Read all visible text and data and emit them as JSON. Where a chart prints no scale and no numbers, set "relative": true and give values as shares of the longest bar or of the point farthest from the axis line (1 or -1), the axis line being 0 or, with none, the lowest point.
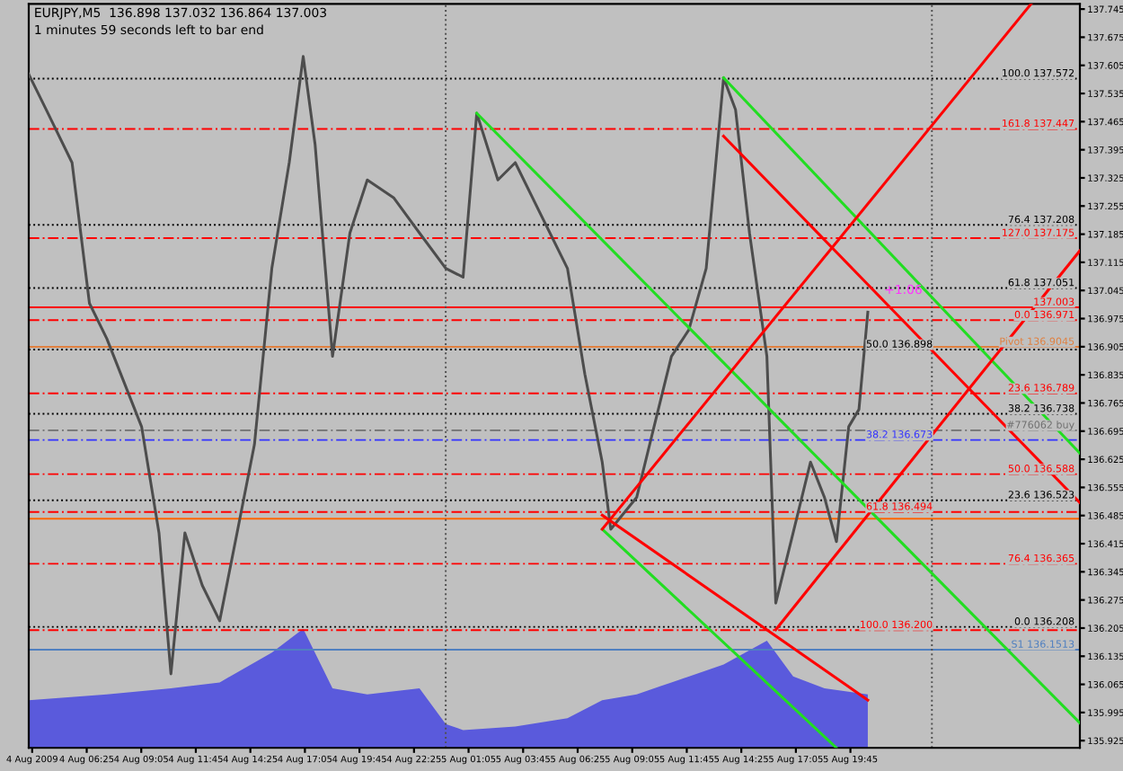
{
  "chart_data": [
    {
      "type": "line",
      "title": "EURJPY,M5  136.898 137.032 136.864 137.003",
      "subtitle": "1 minutes 59 seconds left to bar end",
      "xlim": [
        "2009-08-04T03:35",
        "2009-08-06T06:58"
      ],
      "ylim": [
        135.907,
        137.758
      ],
      "xticks": [
        {
          "value": "2009-08-04T03:45",
          "label": "4 Aug 2009"
        },
        {
          "value": "2009-08-04T06:25",
          "label": "4 Aug 06:25"
        },
        {
          "value": "2009-08-04T09:05",
          "label": "4 Aug 09:05"
        },
        {
          "value": "2009-08-04T11:45",
          "label": "4 Aug 11:45"
        },
        {
          "value": "2009-08-04T14:25",
          "label": "4 Aug 14:25"
        },
        {
          "value": "2009-08-04T17:05",
          "label": "4 Aug 17:05"
        },
        {
          "value": "2009-08-04T19:45",
          "label": "4 Aug 19:45"
        },
        {
          "value": "2009-08-04T22:25",
          "label": "4 Aug 22:25"
        },
        {
          "value": "2009-08-05T01:05",
          "label": "5 Aug 01:05"
        },
        {
          "value": "2009-08-05T03:45",
          "label": "5 Aug 03:45"
        },
        {
          "value": "2009-08-05T06:25",
          "label": "5 Aug 06:25"
        },
        {
          "value": "2009-08-05T09:05",
          "label": "5 Aug 09:05"
        },
        {
          "value": "2009-08-05T11:45",
          "label": "5 Aug 11:45"
        },
        {
          "value": "2009-08-05T14:25",
          "label": "5 Aug 14:25"
        },
        {
          "value": "2009-08-05T17:05",
          "label": "5 Aug 17:05"
        },
        {
          "value": "2009-08-05T19:45",
          "label": "5 Aug 19:45"
        }
      ],
      "yticks": [
        135.925,
        135.995,
        136.065,
        136.135,
        136.205,
        136.275,
        136.345,
        136.415,
        136.485,
        136.555,
        136.625,
        136.695,
        136.765,
        136.835,
        136.905,
        136.975,
        137.045,
        137.115,
        137.185,
        137.255,
        137.325,
        137.395,
        137.465,
        137.535,
        137.605,
        137.675,
        137.745
      ],
      "grid": false,
      "legend": false,
      "series": [
        {
          "color": "#4d4d4d",
          "x": [
            "2009-08-04T03:35",
            "2009-08-04T04:26",
            "2009-08-04T05:42",
            "2009-08-04T06:33",
            "2009-08-04T07:24",
            "2009-08-04T09:06",
            "2009-08-04T09:57",
            "2009-08-04T10:32",
            "2009-08-04T11:13",
            "2009-08-04T12:04",
            "2009-08-04T12:55",
            "2009-08-04T13:46",
            "2009-08-04T14:37",
            "2009-08-04T15:28",
            "2009-08-04T16:19",
            "2009-08-04T17:00",
            "2009-08-04T17:35",
            "2009-08-04T18:26",
            "2009-08-04T19:17",
            "2009-08-04T20:08",
            "2009-08-04T21:25",
            "2009-08-04T22:41",
            "2009-08-04T23:58",
            "2009-08-05T00:49",
            "2009-08-05T01:29",
            "2009-08-05T02:31",
            "2009-08-05T03:22",
            "2009-08-05T04:38",
            "2009-08-05T05:55",
            "2009-08-05T06:46",
            "2009-08-05T07:37",
            "2009-08-05T08:02",
            "2009-08-05T09:18",
            "2009-08-05T10:09",
            "2009-08-05T11:00",
            "2009-08-05T11:51",
            "2009-08-05T12:42",
            "2009-08-05T13:33",
            "2009-08-05T14:08",
            "2009-08-05T14:49",
            "2009-08-05T15:40",
            "2009-08-05T16:06",
            "2009-08-05T16:57",
            "2009-08-05T17:48",
            "2009-08-05T18:29",
            "2009-08-05T19:04",
            "2009-08-05T19:40",
            "2009-08-05T20:10",
            "2009-08-05T20:36"
          ],
          "values": [
            137.583,
            137.495,
            137.363,
            137.013,
            136.925,
            136.706,
            136.442,
            136.091,
            136.442,
            136.311,
            136.223,
            136.442,
            136.662,
            137.1,
            137.363,
            137.627,
            137.407,
            136.881,
            137.188,
            137.32,
            137.276,
            137.188,
            137.1,
            137.078,
            137.486,
            137.32,
            137.363,
            137.232,
            137.1,
            136.837,
            136.618,
            136.451,
            136.53,
            136.706,
            136.881,
            136.947,
            137.1,
            137.574,
            137.495,
            137.188,
            136.881,
            136.267,
            136.442,
            136.618,
            136.53,
            136.42,
            136.706,
            136.749,
            136.991
          ]
        },
        {
          "color": "#22dd22",
          "x": [
            "2009-08-05T01:29",
            "2009-08-06T06:58"
          ],
          "values": [
            137.486,
            135.969
          ]
        },
        {
          "color": "#22dd22",
          "x": [
            "2009-08-05T13:33",
            "2009-08-06T06:58"
          ],
          "values": [
            137.574,
            136.64
          ]
        },
        {
          "color": "#22dd22",
          "x": [
            "2009-08-05T07:37",
            "2009-08-05T19:04"
          ],
          "values": [
            136.451,
            135.907
          ]
        },
        {
          "color": "#ff0000",
          "x": [
            "2009-08-05T16:06",
            "2009-08-06T06:58"
          ],
          "values": [
            136.201,
            137.144
          ]
        },
        {
          "color": "#ff0000",
          "x": [
            "2009-08-05T07:37",
            "2009-08-06T04:35"
          ],
          "values": [
            136.451,
            137.758
          ]
        },
        {
          "color": "#ff0000",
          "x": [
            "2009-08-05T13:33",
            "2009-08-06T06:58"
          ],
          "values": [
            137.429,
            136.517
          ]
        },
        {
          "color": "#ff0000",
          "x": [
            "2009-08-05T07:37",
            "2009-08-05T20:36"
          ],
          "values": [
            136.486,
            136.026
          ]
        }
      ],
      "ref_lines": [
        {
          "axis": "y",
          "value": 137.003,
          "label": "137.003",
          "color": "#ff0000",
          "line_style": "solid"
        },
        {
          "axis": "y",
          "value": 136.697,
          "label": "#776062 buy",
          "color": "#707070",
          "line_style": "dashed"
        },
        {
          "axis": "y",
          "value": 136.477,
          "label": null,
          "color": "#ff6600",
          "line_style": "solid"
        },
        {
          "axis": "y",
          "value": 136.9045,
          "label": "Pivot 136.9045",
          "color": "#e08040",
          "line_style": "solid"
        },
        {
          "axis": "y",
          "value": 136.1513,
          "label": "S1 136.1513",
          "color": "#5080c0",
          "line_style": "solid"
        },
        {
          "axis": "y",
          "value": 137.572,
          "label": "100.0 137.572",
          "color": "#000000",
          "line_style": "dotted"
        },
        {
          "axis": "y",
          "value": 137.208,
          "label": "76.4 137.208",
          "color": "#000000",
          "line_style": "dotted"
        },
        {
          "axis": "y",
          "value": 137.051,
          "label": "61.8 137.051",
          "color": "#000000",
          "line_style": "dotted"
        },
        {
          "axis": "y",
          "value": 136.898,
          "label": "50.0 136.898",
          "color": "#000000",
          "line_style": "dotted"
        },
        {
          "axis": "y",
          "value": 136.738,
          "label": "38.2 136.738",
          "color": "#000000",
          "line_style": "dotted"
        },
        {
          "axis": "y",
          "value": 136.523,
          "label": "23.6 136.523",
          "color": "#000000",
          "line_style": "dotted"
        },
        {
          "axis": "y",
          "value": 136.208,
          "label": "0.0 136.208",
          "color": "#000000",
          "line_style": "dotted"
        },
        {
          "axis": "y",
          "value": 137.447,
          "label": "161.8 137.447",
          "color": "#ff0000",
          "line_style": "dashed"
        },
        {
          "axis": "y",
          "value": 137.175,
          "label": "127.0 137.175",
          "color": "#ff0000",
          "line_style": "dashed"
        },
        {
          "axis": "y",
          "value": 136.971,
          "label": "0.0 136.971",
          "color": "#ff0000",
          "line_style": "dashed"
        },
        {
          "axis": "y",
          "value": 136.789,
          "label": "23.6 136.789",
          "color": "#ff0000",
          "line_style": "dashed"
        },
        {
          "axis": "y",
          "value": 136.673,
          "label": "38.2 136.673",
          "color": "#3333ff",
          "line_style": "dashed"
        },
        {
          "axis": "y",
          "value": 136.588,
          "label": "50.0 136.588",
          "color": "#ff0000",
          "line_style": "dashed"
        },
        {
          "axis": "y",
          "value": 136.494,
          "label": "61.8 136.494",
          "color": "#ff0000",
          "line_style": "dashed"
        },
        {
          "axis": "y",
          "value": 136.365,
          "label": "76.4 136.365",
          "color": "#ff0000",
          "line_style": "dashed"
        },
        {
          "axis": "y",
          "value": 136.2,
          "label": "100.0 136.200",
          "color": "#ff0000",
          "line_style": "dashed"
        },
        {
          "axis": "x",
          "value": "2009-08-04T23:58",
          "label": null,
          "color": "#505050",
          "line_style": "dotted"
        },
        {
          "axis": "x",
          "value": "2009-08-05T23:44",
          "label": null,
          "color": "#505050",
          "line_style": "dotted"
        }
      ],
      "annotations": [
        {
          "text": "+1.06",
          "x": "2009-08-05T21:24",
          "y": 137.03
        }
      ]
    },
    {
      "type": "area",
      "relative": true,
      "xlim": [
        "2009-08-04T03:35",
        "2009-08-06T06:58"
      ],
      "series": [
        {
          "color": "#5a5adc",
          "x": [
            "2009-08-04T03:35",
            "2009-08-04T07:24",
            "2009-08-04T10:32",
            "2009-08-04T12:55",
            "2009-08-04T15:28",
            "2009-08-04T17:00",
            "2009-08-04T18:26",
            "2009-08-04T20:08",
            "2009-08-04T22:41",
            "2009-08-04T23:58",
            "2009-08-05T00:49",
            "2009-08-05T03:22",
            "2009-08-05T05:55",
            "2009-08-05T07:37",
            "2009-08-05T09:18",
            "2009-08-05T11:00",
            "2009-08-05T13:33",
            "2009-08-05T15:40",
            "2009-08-05T16:57",
            "2009-08-05T18:29",
            "2009-08-05T20:36"
          ],
          "values": [
            0.4,
            0.45,
            0.5,
            0.55,
            0.8,
            1.0,
            0.5,
            0.45,
            0.5,
            0.2,
            0.15,
            0.18,
            0.25,
            0.4,
            0.45,
            0.55,
            0.7,
            0.9,
            0.6,
            0.5,
            0.45
          ]
        }
      ]
    }
  ]
}
